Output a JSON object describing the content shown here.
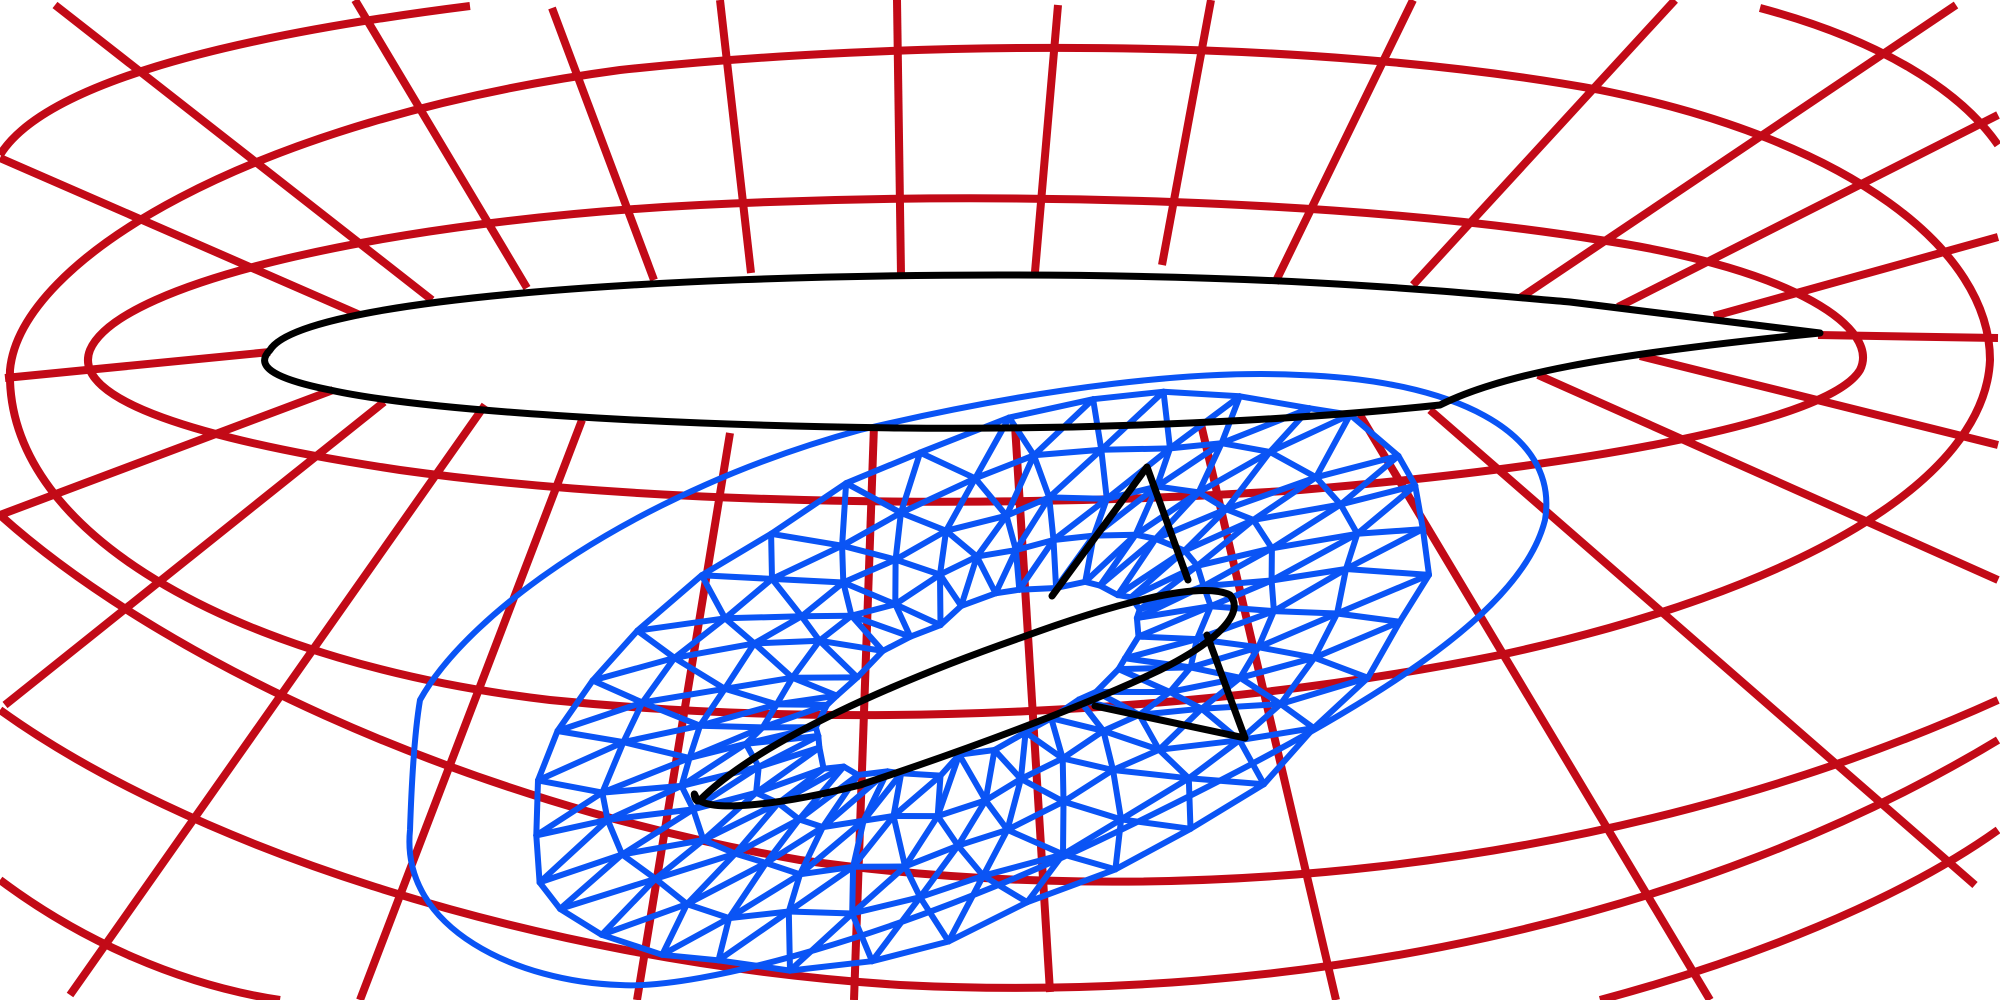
{
  "figure": {
    "description_visible_text": [],
    "colors": {
      "background": "#ffffff",
      "outer_grid": "#c20a17",
      "surface_mesh": "#0a54f5",
      "boundary_curves": "#000000"
    },
    "elements": [
      "outer-grid",
      "triangulated-surface-mesh",
      "inner-ellipse-boundary",
      "triangle-hole-boundary"
    ]
  }
}
